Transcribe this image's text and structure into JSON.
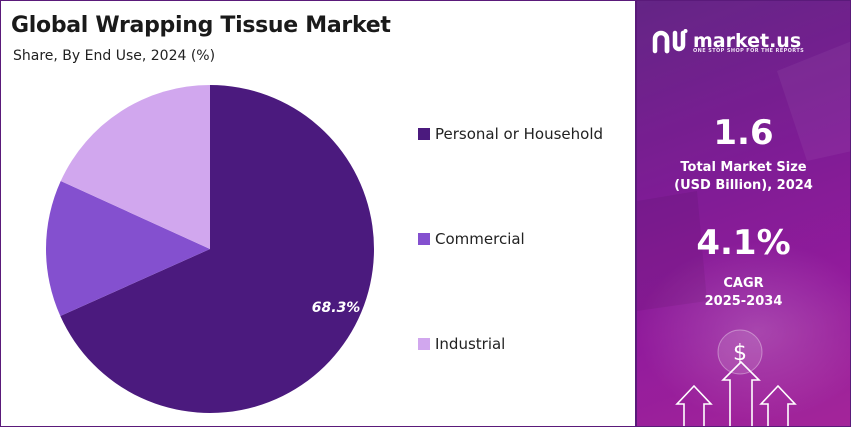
{
  "chart_data": {
    "type": "pie",
    "title": "Global Wrapping Tissue Market",
    "subtitle": "Share, By End Use, 2024 (%)",
    "slices": [
      {
        "label": "Personal or Household",
        "value": 68.3,
        "color": "#4b1a7e",
        "data_label": "68.3%"
      },
      {
        "label": "Commercial",
        "value": 13.5,
        "color": "#8450cf"
      },
      {
        "label": "Industrial",
        "value": 18.2,
        "color": "#d1a7ee"
      }
    ],
    "legend_position": "right"
  },
  "sidebar": {
    "brand": "market.us",
    "tagline": "ONE STOP SHOP FOR THE REPORTS",
    "market_size_value": "1.6",
    "market_size_label_1": "Total Market Size",
    "market_size_label_2": "(USD Billion), 2024",
    "cagr_value": "4.1%",
    "cagr_label_1": "CAGR",
    "cagr_label_2": "2025-2034",
    "dollar_icon": "dollar-icon",
    "arrow_icons": "arrow-up-icon"
  }
}
